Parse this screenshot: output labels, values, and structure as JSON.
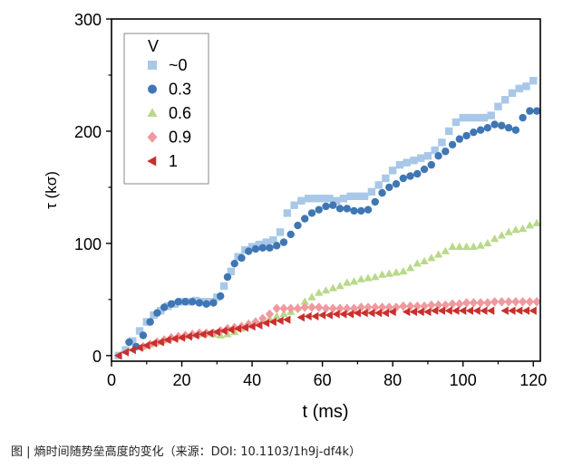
{
  "caption": "图 | 熵时间随势垒高度的变化（来源：DOI: 10.1103/1h9j-df4k）",
  "chart_data": {
    "type": "scatter",
    "xlabel": "t (ms)",
    "ylabel": "τ (kσ)",
    "xlim": [
      0,
      122
    ],
    "ylim": [
      -5,
      300
    ],
    "xticks": [
      0,
      20,
      40,
      60,
      80,
      100,
      120
    ],
    "yticks": [
      0,
      100,
      200,
      300
    ],
    "grid": false,
    "legend_title": "V",
    "legend_position": "top-left",
    "series": [
      {
        "name": "~0",
        "marker": "square",
        "color": "#a9c8e8",
        "x": [
          2,
          4,
          6,
          8,
          10,
          12,
          14,
          16,
          18,
          20,
          22,
          24,
          26,
          28,
          30,
          32,
          34,
          36,
          38,
          40,
          42,
          44,
          46,
          48,
          50,
          52,
          54,
          56,
          58,
          60,
          62,
          64,
          66,
          68,
          70,
          72,
          74,
          76,
          78,
          80,
          82,
          84,
          86,
          88,
          90,
          92,
          94,
          96,
          98,
          100,
          102,
          104,
          106,
          108,
          110,
          112,
          114,
          116,
          118,
          120
        ],
        "y": [
          0,
          5,
          13,
          22,
          30,
          36,
          40,
          44,
          46,
          48,
          48,
          49,
          48,
          48,
          52,
          62,
          75,
          88,
          94,
          97,
          99,
          101,
          103,
          110,
          127,
          134,
          138,
          140,
          140,
          140,
          140,
          138,
          140,
          142,
          142,
          142,
          146,
          152,
          158,
          165,
          170,
          172,
          174,
          176,
          178,
          183,
          190,
          200,
          208,
          212,
          212,
          212,
          212,
          214,
          222,
          228,
          234,
          238,
          240,
          245
        ]
      },
      {
        "name": "0.3",
        "marker": "circle",
        "color": "#3f76b4",
        "x": [
          5,
          7,
          9,
          11,
          13,
          15,
          17,
          19,
          21,
          23,
          25,
          27,
          29,
          31,
          33,
          35,
          37,
          39,
          41,
          43,
          45,
          47,
          49,
          51,
          53,
          55,
          57,
          59,
          61,
          63,
          65,
          67,
          69,
          71,
          73,
          75,
          77,
          79,
          81,
          83,
          85,
          87,
          89,
          91,
          93,
          95,
          97,
          99,
          101,
          103,
          105,
          107,
          109,
          111,
          113,
          115,
          117,
          119,
          121
        ],
        "y": [
          12,
          8,
          18,
          30,
          38,
          43,
          46,
          48,
          48,
          48,
          47,
          46,
          47,
          53,
          70,
          82,
          87,
          93,
          95,
          96,
          96,
          98,
          101,
          108,
          116,
          122,
          127,
          130,
          133,
          134,
          131,
          131,
          129,
          129,
          130,
          137,
          145,
          150,
          153,
          158,
          160,
          162,
          166,
          170,
          178,
          182,
          188,
          193,
          196,
          199,
          201,
          203,
          206,
          205,
          203,
          201,
          212,
          218,
          218
        ]
      },
      {
        "name": "0.6",
        "marker": "triangle-up",
        "color": "#b8d98a",
        "x": [
          9,
          11,
          13,
          15,
          17,
          19,
          21,
          23,
          25,
          27,
          29,
          31,
          33,
          35,
          37,
          39,
          41,
          43,
          45,
          47,
          49,
          51,
          53,
          55,
          57,
          59,
          61,
          63,
          65,
          67,
          69,
          71,
          73,
          75,
          77,
          79,
          81,
          83,
          85,
          87,
          89,
          91,
          93,
          95,
          97,
          99,
          101,
          103,
          105,
          107,
          109,
          111,
          113,
          115,
          117,
          119,
          121
        ],
        "y": [
          8,
          10,
          12,
          14,
          16,
          17,
          18,
          19,
          19,
          20,
          19,
          18,
          19,
          21,
          24,
          27,
          29,
          31,
          33,
          35,
          37,
          39,
          43,
          48,
          52,
          56,
          58,
          60,
          62,
          65,
          66,
          68,
          69,
          70,
          72,
          73,
          74,
          75,
          78,
          82,
          84,
          87,
          90,
          93,
          97,
          97,
          97,
          97,
          98,
          100,
          104,
          107,
          110,
          112,
          113,
          116,
          118
        ]
      },
      {
        "name": "0.9",
        "marker": "diamond",
        "color": "#ee9a9e",
        "x": [
          9,
          11,
          13,
          15,
          17,
          19,
          21,
          23,
          25,
          27,
          29,
          31,
          33,
          35,
          37,
          39,
          41,
          43,
          45,
          47,
          49,
          51,
          53,
          55,
          57,
          59,
          61,
          63,
          65,
          67,
          69,
          71,
          73,
          75,
          77,
          79,
          81,
          83,
          85,
          87,
          89,
          91,
          93,
          95,
          97,
          99,
          101,
          103,
          105,
          107,
          109,
          111,
          113,
          115,
          117,
          119,
          121
        ],
        "y": [
          8,
          10,
          12,
          14,
          16,
          17,
          18,
          19,
          20,
          20,
          20,
          22,
          24,
          25,
          26,
          28,
          30,
          33,
          37,
          42,
          42,
          42,
          42,
          43,
          43,
          43,
          42,
          42,
          42,
          42,
          42,
          43,
          43,
          43,
          43,
          43,
          43,
          44,
          44,
          44,
          44,
          45,
          45,
          45,
          46,
          46,
          47,
          47,
          47,
          47,
          48,
          48,
          48,
          48,
          48,
          48,
          48
        ]
      },
      {
        "name": "1",
        "marker": "triangle-left",
        "color": "#c9302c",
        "x": [
          2,
          4,
          6,
          8,
          10,
          12,
          14,
          16,
          18,
          20,
          22,
          24,
          26,
          28,
          30,
          32,
          34,
          36,
          38,
          40,
          42,
          44,
          46,
          48,
          50,
          54,
          56,
          58,
          60,
          62,
          64,
          66,
          68,
          70,
          72,
          74,
          76,
          78,
          80,
          84,
          86,
          88,
          90,
          92,
          94,
          96,
          98,
          100,
          102,
          104,
          106,
          108,
          112,
          114,
          116,
          118,
          120
        ],
        "y": [
          0,
          3,
          5,
          7,
          9,
          11,
          12,
          14,
          15,
          16,
          17,
          18,
          19,
          20,
          21,
          22,
          23,
          24,
          25,
          26,
          27,
          29,
          30,
          31,
          32,
          34,
          35,
          35,
          36,
          36,
          37,
          37,
          37,
          38,
          38,
          38,
          38,
          38,
          39,
          39,
          39,
          39,
          39,
          40,
          40,
          40,
          40,
          40,
          40,
          40,
          40,
          40,
          40,
          40,
          40,
          40,
          40
        ]
      }
    ]
  }
}
